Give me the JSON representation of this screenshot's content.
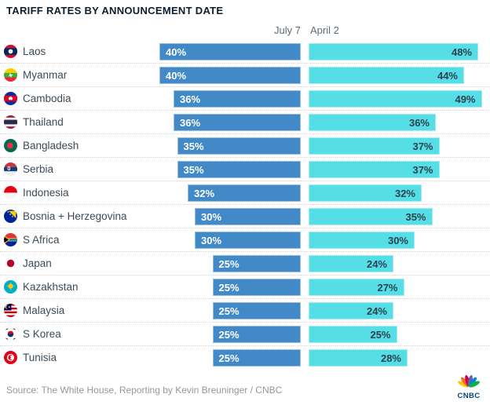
{
  "title": "TARIFF RATES BY ANNOUNCEMENT DATE",
  "source": "Source: The White House, Reporting by Kevin Breuninger / CNBC",
  "logo": {
    "icon": "cnbc-peacock-icon",
    "text": "CNBC"
  },
  "chart_data": {
    "type": "bar",
    "orientation": "horizontal-diverging",
    "title": "TARIFF RATES BY ANNOUNCEMENT DATE",
    "categories": [
      "Laos",
      "Myanmar",
      "Cambodia",
      "Thailand",
      "Bangladesh",
      "Serbia",
      "Indonesia",
      "Bosnia + Herzegovina",
      "S Africa",
      "Japan",
      "Kazakhstan",
      "Malaysia",
      "S Korea",
      "Tunisia"
    ],
    "flags": [
      "flag-laos-icon",
      "flag-myanmar-icon",
      "flag-cambodia-icon",
      "flag-thailand-icon",
      "flag-bangladesh-icon",
      "flag-serbia-icon",
      "flag-indonesia-icon",
      "flag-bosnia-herzegovina-icon",
      "flag-s-africa-icon",
      "flag-japan-icon",
      "flag-kazakhstan-icon",
      "flag-malaysia-icon",
      "flag-s-korea-icon",
      "flag-tunisia-icon"
    ],
    "series": [
      {
        "name": "July 7",
        "color": "#4289c8",
        "values": [
          40,
          40,
          36,
          36,
          35,
          35,
          32,
          30,
          30,
          25,
          25,
          25,
          25,
          25
        ]
      },
      {
        "name": "April 2",
        "color": "#55dee5",
        "values": [
          48,
          44,
          49,
          36,
          37,
          37,
          32,
          35,
          30,
          24,
          27,
          24,
          25,
          28
        ]
      }
    ],
    "value_suffix": "%",
    "value_labels": "inside-bar",
    "xlim": [
      0,
      50
    ],
    "grid": false,
    "legend_position": "top-center",
    "separator_style": "dotted"
  }
}
